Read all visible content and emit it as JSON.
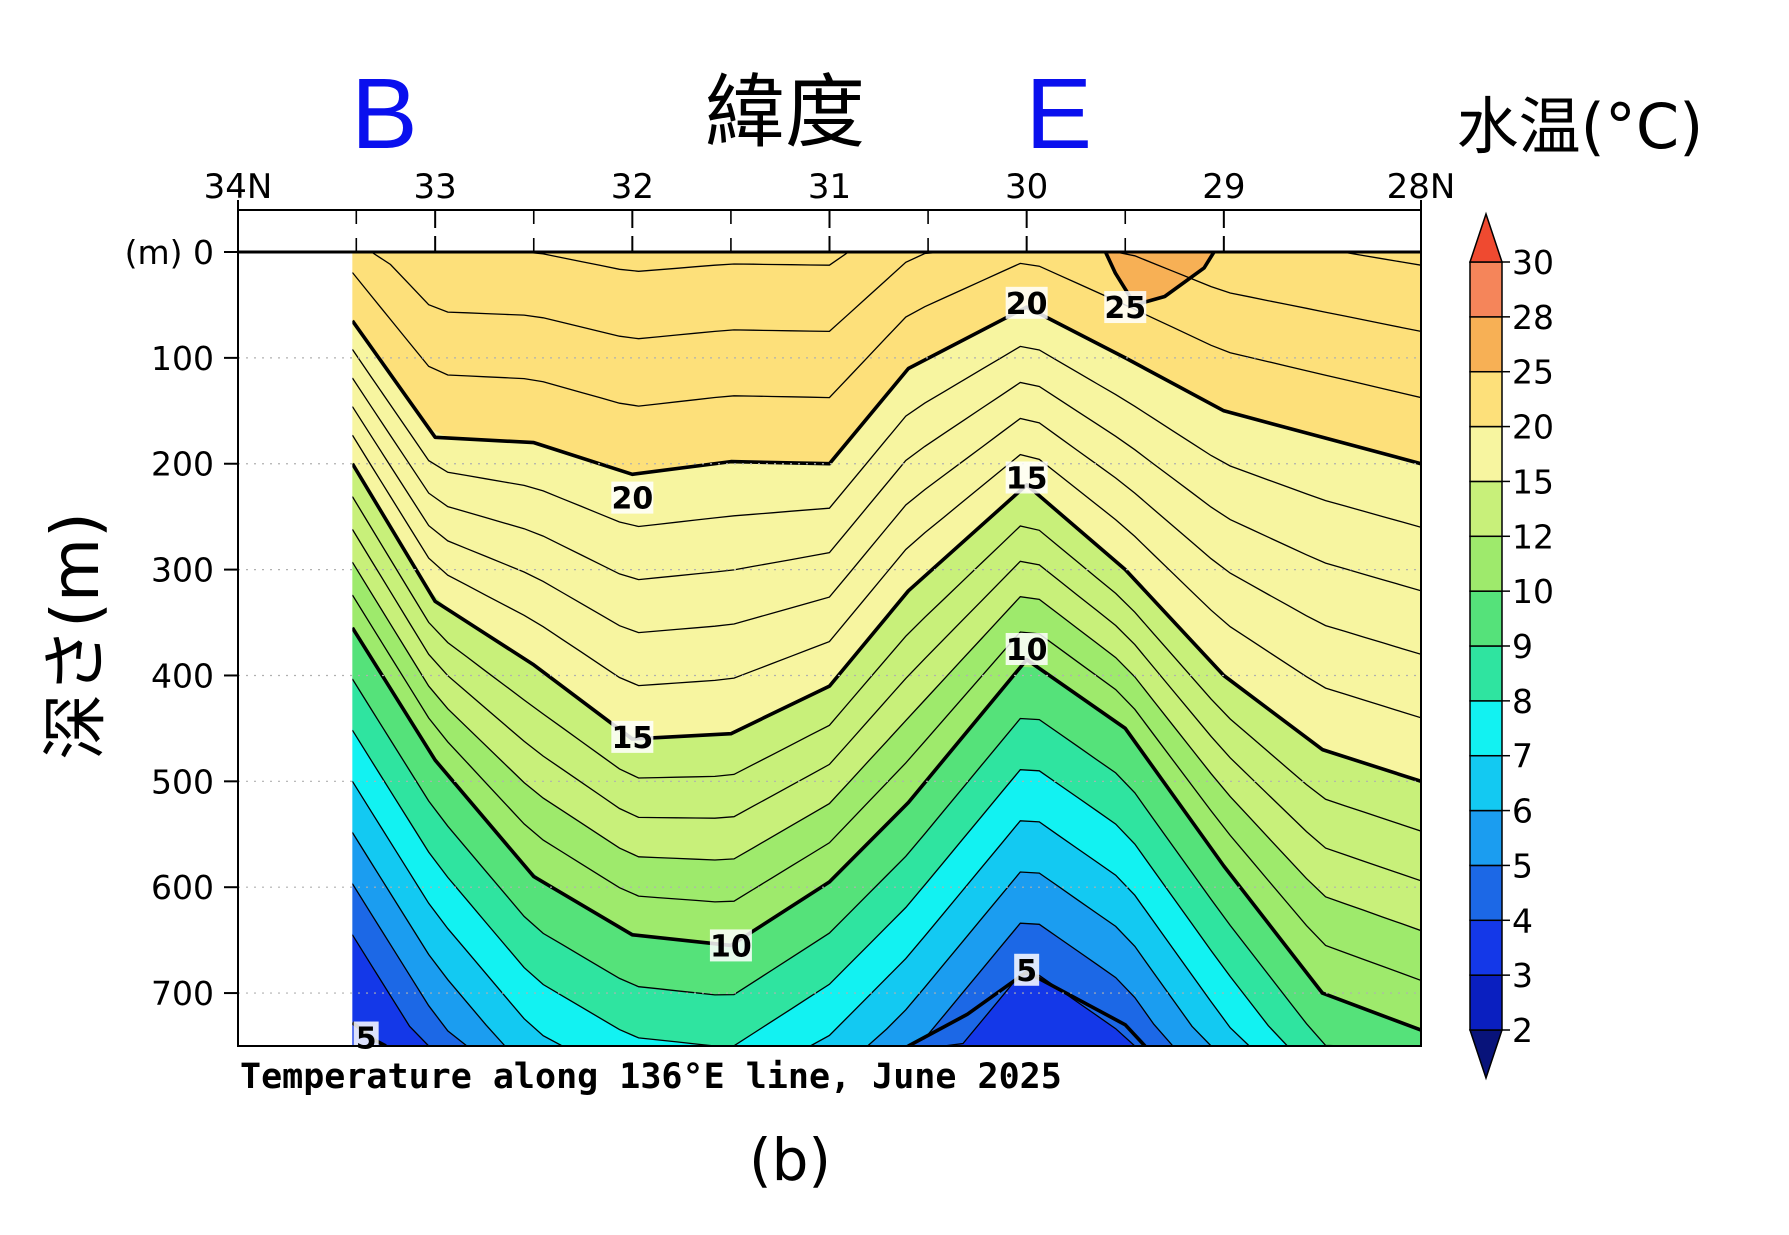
{
  "chart_data": {
    "type": "contour",
    "title": "Temperature along 136°E line, June 2025",
    "panel_label": "(b)",
    "xlabel": "緯度",
    "ylabel": "深さ(m)",
    "colorbar_label": "水温(°C)",
    "x_axis": {
      "range": [
        34,
        28
      ],
      "ticks": [
        34,
        33,
        32,
        31,
        30,
        29,
        28
      ],
      "tick_labels": [
        "34N",
        "33",
        "32",
        "31",
        "30",
        "29",
        "28N"
      ],
      "minor_ticks": [
        33.4,
        32.5,
        31.5,
        30.5,
        29.5
      ]
    },
    "y_axis": {
      "range": [
        0,
        750
      ],
      "ticks": [
        0,
        100,
        200,
        300,
        400,
        500,
        600,
        700
      ],
      "tick_labels": [
        "(m) 0",
        "100",
        "200",
        "300",
        "400",
        "500",
        "600",
        "700"
      ]
    },
    "data_x_range": [
      33.42,
      28
    ],
    "station_markers": [
      {
        "label": "B",
        "x": 33.42
      },
      {
        "label": "E",
        "x": 30.0
      }
    ],
    "colorbar": {
      "levels": [
        2,
        3,
        4,
        5,
        6,
        7,
        8,
        9,
        10,
        12,
        15,
        20,
        25,
        28,
        30
      ],
      "tick_labels": [
        "2",
        "3",
        "4",
        "5",
        "6",
        "7",
        "8",
        "9",
        "10",
        "12",
        "15",
        "20",
        "25",
        "28",
        "30"
      ],
      "colors": [
        "#08137a",
        "#0a1fc0",
        "#1438e8",
        "#1c68e6",
        "#1b9df0",
        "#13c9f2",
        "#12f2f2",
        "#2fe4a0",
        "#55e27a",
        "#9eea6c",
        "#c8f07a",
        "#f7f5a0",
        "#fde07a",
        "#f7b055",
        "#f5855a",
        "#ef4a30"
      ]
    },
    "contour_lines": [
      {
        "level": 25,
        "bold": true,
        "points": [
          [
            29.6,
            0
          ],
          [
            29.55,
            20
          ],
          [
            29.45,
            50
          ],
          [
            29.3,
            42
          ],
          [
            29.1,
            15
          ],
          [
            29.05,
            0
          ]
        ]
      },
      {
        "level": 20,
        "bold": true,
        "points": [
          [
            33.42,
            65
          ],
          [
            33.0,
            175
          ],
          [
            32.5,
            180
          ],
          [
            32.0,
            210
          ],
          [
            31.5,
            198
          ],
          [
            31.0,
            200
          ],
          [
            30.6,
            110
          ],
          [
            30.0,
            52
          ],
          [
            29.5,
            100
          ],
          [
            29.0,
            150
          ],
          [
            28.5,
            175
          ],
          [
            28.0,
            200
          ]
        ]
      },
      {
        "level": 15,
        "bold": true,
        "points": [
          [
            33.42,
            200
          ],
          [
            33.0,
            330
          ],
          [
            32.5,
            390
          ],
          [
            32.0,
            460
          ],
          [
            31.5,
            455
          ],
          [
            31.0,
            410
          ],
          [
            30.6,
            320
          ],
          [
            30.0,
            220
          ],
          [
            29.5,
            300
          ],
          [
            29.0,
            400
          ],
          [
            28.5,
            470
          ],
          [
            28.0,
            500
          ]
        ]
      },
      {
        "level": 10,
        "bold": true,
        "points": [
          [
            33.42,
            355
          ],
          [
            33.0,
            480
          ],
          [
            32.5,
            590
          ],
          [
            32.0,
            645
          ],
          [
            31.5,
            655
          ],
          [
            31.0,
            595
          ],
          [
            30.6,
            520
          ],
          [
            30.0,
            385
          ],
          [
            29.5,
            450
          ],
          [
            29.0,
            580
          ],
          [
            28.5,
            700
          ],
          [
            28.0,
            735
          ]
        ]
      },
      {
        "level": 5,
        "bold": true,
        "points": [
          [
            30.6,
            750
          ],
          [
            30.3,
            720
          ],
          [
            30.0,
            680
          ],
          [
            29.5,
            730
          ],
          [
            29.4,
            750
          ]
        ]
      },
      {
        "level": 5,
        "bold": true,
        "points": [
          [
            33.42,
            728
          ],
          [
            33.3,
            745
          ],
          [
            33.25,
            750
          ]
        ]
      }
    ],
    "contour_labels": [
      {
        "text": "25",
        "x": 29.5,
        "y": 52
      },
      {
        "text": "20",
        "x": 30.0,
        "y": 48
      },
      {
        "text": "20",
        "x": 32.0,
        "y": 232
      },
      {
        "text": "15",
        "x": 30.0,
        "y": 213
      },
      {
        "text": "15",
        "x": 32.0,
        "y": 458
      },
      {
        "text": "10",
        "x": 30.0,
        "y": 375
      },
      {
        "text": "10",
        "x": 31.5,
        "y": 655
      },
      {
        "text": "5",
        "x": 30.0,
        "y": 678
      },
      {
        "text": "5",
        "x": 33.35,
        "y": 742
      }
    ]
  }
}
